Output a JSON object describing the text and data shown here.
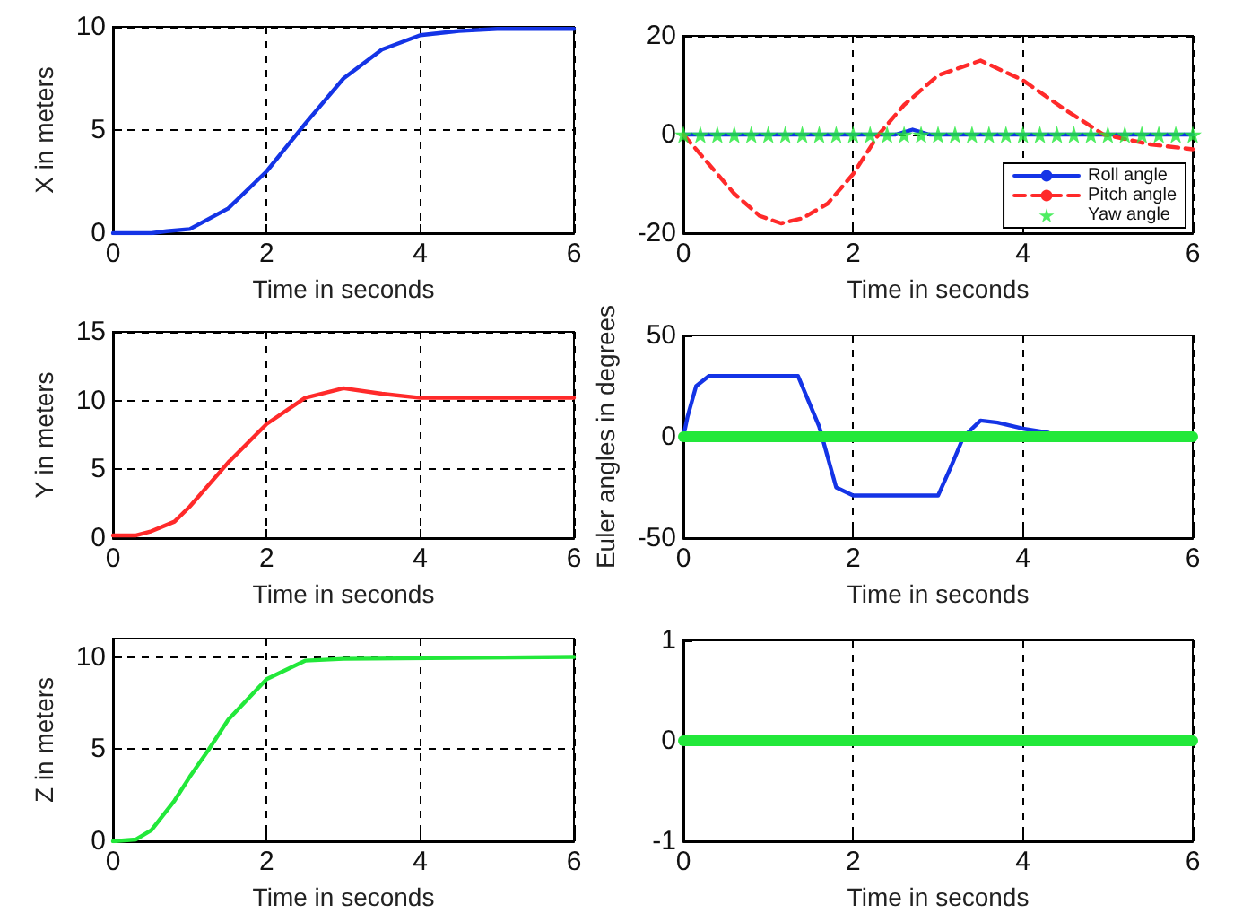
{
  "chart_data": [
    {
      "type": "line",
      "ylabel": "X in meters",
      "xlabel": "Time in seconds",
      "xlim": [
        0,
        6
      ],
      "xticks": [
        0,
        2,
        4,
        6
      ],
      "ylim": [
        0,
        10
      ],
      "yticks": [
        0,
        5,
        10
      ],
      "grid": true,
      "x": [
        0,
        0.5,
        0.7,
        1.0,
        1.5,
        2.0,
        2.5,
        3.0,
        3.5,
        4.0,
        4.5,
        5.0,
        6.0
      ],
      "series": [
        {
          "color": "#1434e6",
          "values": [
            0,
            0,
            0.1,
            0.2,
            1.2,
            3.0,
            5.3,
            7.5,
            8.9,
            9.6,
            9.8,
            9.9,
            9.9
          ]
        }
      ]
    },
    {
      "type": "line",
      "xlabel": "Time in seconds",
      "xlim": [
        0,
        6
      ],
      "xticks": [
        0,
        2,
        4,
        6
      ],
      "ylim": [
        -20,
        20
      ],
      "yticks": [
        -20,
        0,
        20
      ],
      "grid": true,
      "legend": "bottom right",
      "series": [
        {
          "name": "Roll angle",
          "color": "#1434e6",
          "x": [
            0,
            2.5,
            2.7,
            2.9,
            6
          ],
          "values": [
            0,
            0,
            1,
            0,
            0
          ]
        },
        {
          "name": "Pitch angle",
          "color": "#ff2a2a",
          "line_style": "dashed",
          "x": [
            0,
            0.3,
            0.6,
            0.9,
            1.15,
            1.4,
            1.7,
            2.0,
            2.3,
            2.6,
            3.0,
            3.5,
            4.0,
            4.5,
            4.95,
            5.5,
            6.0
          ],
          "values": [
            0,
            -6,
            -12,
            -16.5,
            -18,
            -17,
            -14,
            -8,
            0,
            6,
            12,
            15,
            11,
            5,
            0,
            -2,
            -3
          ]
        },
        {
          "name": "Yaw angle",
          "type": "scatter",
          "marker": "star",
          "color": "#22e83a",
          "x": [
            0,
            0.2,
            0.4,
            0.6,
            0.8,
            1.0,
            1.2,
            1.4,
            1.6,
            1.8,
            2.0,
            2.2,
            2.4,
            2.6,
            2.8,
            3.0,
            3.2,
            3.4,
            3.6,
            3.8,
            4.0,
            4.2,
            4.4,
            4.6,
            4.8,
            5.0,
            5.2,
            5.4,
            5.6,
            5.8,
            6.0
          ],
          "values": [
            0,
            0,
            0,
            0,
            0,
            0,
            0,
            0,
            0,
            0,
            0,
            0,
            0,
            0,
            0,
            0,
            0,
            0,
            0,
            0,
            0,
            0,
            0,
            0,
            0,
            0,
            0,
            0,
            0,
            0,
            0
          ]
        }
      ]
    },
    {
      "type": "line",
      "ylabel": "Y in meters",
      "xlabel": "Time in seconds",
      "xlim": [
        0,
        6
      ],
      "xticks": [
        0,
        2,
        4,
        6
      ],
      "ylim": [
        0,
        15
      ],
      "yticks": [
        0,
        5,
        10,
        15
      ],
      "grid": true,
      "x": [
        0,
        0.3,
        0.5,
        0.8,
        1.0,
        1.5,
        2.0,
        2.5,
        3.0,
        3.5,
        4.0,
        6.0
      ],
      "series": [
        {
          "color": "#ff2a2a",
          "values": [
            0.2,
            0.2,
            0.5,
            1.2,
            2.3,
            5.5,
            8.3,
            10.2,
            10.9,
            10.5,
            10.2,
            10.2
          ]
        }
      ]
    },
    {
      "type": "line",
      "ylabel": "Euler angles in degrees",
      "xlabel": "Time in seconds",
      "xlim": [
        0,
        6
      ],
      "xticks": [
        0,
        2,
        4,
        6
      ],
      "ylim": [
        -50,
        50
      ],
      "yticks": [
        -50,
        0,
        50
      ],
      "grid": "x",
      "series": [
        {
          "color": "#1434e6",
          "x": [
            0,
            0.05,
            0.15,
            0.3,
            1.35,
            1.6,
            1.8,
            2.0,
            3.0,
            3.15,
            3.3,
            3.5,
            3.7,
            4.0,
            4.3
          ],
          "values": [
            0,
            10,
            25,
            30,
            30,
            5,
            -25,
            -29,
            -29,
            -15,
            0,
            8,
            7,
            4,
            2
          ]
        },
        {
          "color": "#22e83a",
          "x": [
            0,
            6
          ],
          "values": [
            0,
            0
          ]
        }
      ]
    },
    {
      "type": "line",
      "ylabel": "Z in meters",
      "xlabel": "Time in seconds",
      "xlim": [
        0,
        6
      ],
      "xticks": [
        0,
        2,
        4,
        6
      ],
      "ylim": [
        0,
        11
      ],
      "yticks": [
        0,
        5,
        10
      ],
      "grid": true,
      "x": [
        0,
        0.3,
        0.5,
        0.8,
        1.0,
        1.25,
        1.5,
        2.0,
        2.5,
        3.0,
        6.0
      ],
      "series": [
        {
          "color": "#22e83a",
          "values": [
            0,
            0.1,
            0.6,
            2.2,
            3.5,
            5,
            6.6,
            8.8,
            9.8,
            9.9,
            10
          ]
        }
      ]
    },
    {
      "type": "line",
      "xlabel": "Time in seconds",
      "xlim": [
        0,
        6
      ],
      "xticks": [
        0,
        2,
        4,
        6
      ],
      "ylim": [
        -1,
        1
      ],
      "yticks": [
        -1,
        0,
        1
      ],
      "grid": "x",
      "series": [
        {
          "color": "#22e83a",
          "x": [
            0,
            6
          ],
          "values": [
            0,
            0
          ]
        }
      ]
    }
  ]
}
